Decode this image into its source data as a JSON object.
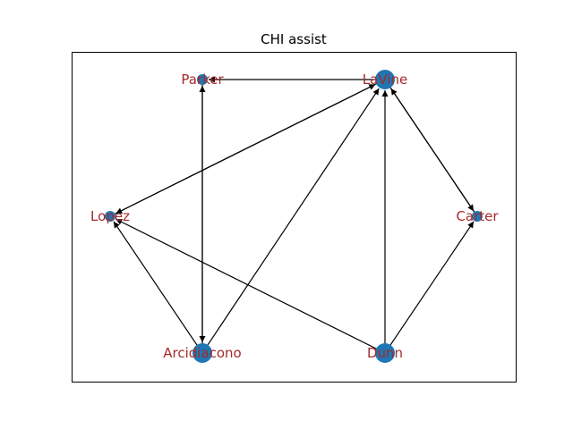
{
  "title": "CHI assist",
  "colors": {
    "node": "#1f77b4",
    "label": "#a52a2a",
    "edge": "#000000",
    "frame": "#000000"
  },
  "nodes": [
    {
      "id": "Parker",
      "label": "Parker",
      "size": 1
    },
    {
      "id": "LaVine",
      "label": "LaVine",
      "size": 3
    },
    {
      "id": "Lopez",
      "label": "Lopez",
      "size": 1
    },
    {
      "id": "Carter",
      "label": "Carter",
      "size": 1
    },
    {
      "id": "Arcidiacono",
      "label": "Arcidiacono",
      "size": 3
    },
    {
      "id": "Dunn",
      "label": "Dunn",
      "size": 3
    }
  ],
  "edges": [
    {
      "from": "LaVine",
      "to": "Parker"
    },
    {
      "from": "Parker",
      "to": "Arcidiacono"
    },
    {
      "from": "Arcidiacono",
      "to": "Parker"
    },
    {
      "from": "LaVine",
      "to": "Lopez"
    },
    {
      "from": "Lopez",
      "to": "LaVine"
    },
    {
      "from": "LaVine",
      "to": "Carter"
    },
    {
      "from": "Carter",
      "to": "LaVine"
    },
    {
      "from": "Arcidiacono",
      "to": "Lopez"
    },
    {
      "from": "Arcidiacono",
      "to": "LaVine"
    },
    {
      "from": "Dunn",
      "to": "Lopez"
    },
    {
      "from": "Dunn",
      "to": "LaVine"
    },
    {
      "from": "Dunn",
      "to": "Carter"
    }
  ]
}
